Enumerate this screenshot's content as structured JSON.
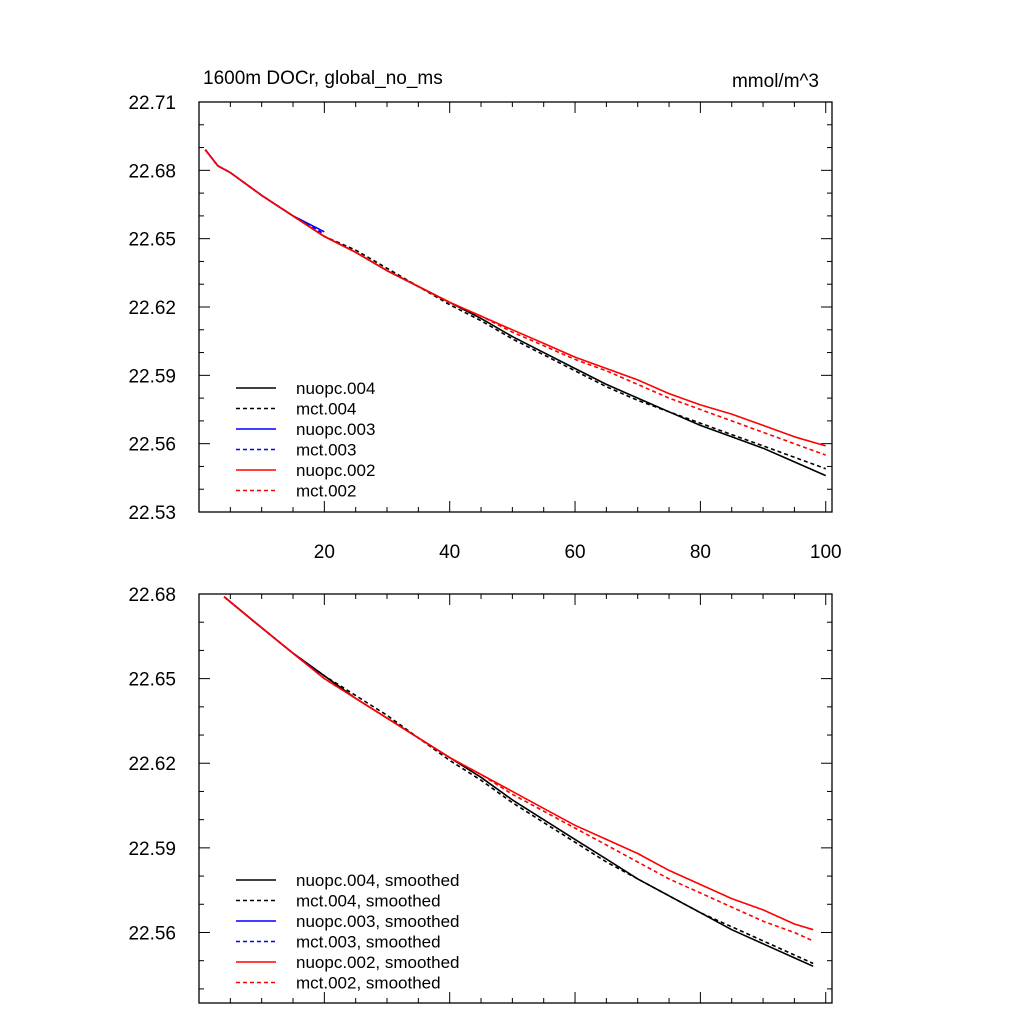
{
  "chart_data": [
    {
      "type": "line",
      "title": "1600m DOCr, global_no_ms",
      "units": "mmol/m^3",
      "xlim": [
        0,
        101
      ],
      "ylim": [
        22.53,
        22.71
      ],
      "xticks": [
        20,
        40,
        60,
        80,
        100
      ],
      "xtick_labels": [
        "20",
        "40",
        "60",
        "80",
        "100"
      ],
      "yticks": [
        22.53,
        22.56,
        22.59,
        22.62,
        22.65,
        22.68,
        22.71
      ],
      "ytick_labels": [
        "22.53",
        "22.56",
        "22.59",
        "22.62",
        "22.65",
        "22.68",
        "22.71"
      ],
      "legend_position": "bottom-left",
      "series": [
        {
          "name": "nuopc.004",
          "color": "#000000",
          "dash": "solid",
          "x": [
            1,
            3,
            5,
            10,
            15,
            20,
            25,
            30,
            35,
            40,
            45,
            50,
            55,
            60,
            65,
            70,
            75,
            80,
            85,
            90,
            95,
            100
          ],
          "y": [
            22.689,
            22.682,
            22.679,
            22.669,
            22.66,
            22.651,
            22.644,
            22.636,
            22.629,
            22.622,
            22.615,
            22.607,
            22.6,
            22.593,
            22.586,
            22.58,
            22.574,
            22.568,
            22.563,
            22.558,
            22.552,
            22.546
          ]
        },
        {
          "name": "mct.004",
          "color": "#000000",
          "dash": "dashed",
          "x": [
            1,
            3,
            5,
            10,
            15,
            20,
            25,
            30,
            35,
            40,
            45,
            50,
            55,
            60,
            65,
            70,
            75,
            80,
            85,
            90,
            95,
            100
          ],
          "y": [
            22.689,
            22.682,
            22.679,
            22.669,
            22.66,
            22.651,
            22.645,
            22.637,
            22.629,
            22.621,
            22.614,
            22.606,
            22.599,
            22.592,
            22.585,
            22.579,
            22.574,
            22.569,
            22.564,
            22.559,
            22.554,
            22.549
          ]
        },
        {
          "name": "nuopc.003",
          "color": "#0000ff",
          "dash": "solid",
          "x": [
            1,
            3,
            5,
            10,
            15,
            20
          ],
          "y": [
            22.689,
            22.682,
            22.679,
            22.669,
            22.66,
            22.653
          ]
        },
        {
          "name": "mct.003",
          "color": "#0000ff",
          "dash": "dashed",
          "x": [
            1,
            3,
            5,
            10,
            15,
            20
          ],
          "y": [
            22.689,
            22.682,
            22.679,
            22.669,
            22.66,
            22.652
          ]
        },
        {
          "name": "nuopc.002",
          "color": "#ff0000",
          "dash": "solid",
          "x": [
            1,
            3,
            5,
            10,
            15,
            20,
            25,
            30,
            35,
            40,
            45,
            50,
            55,
            60,
            65,
            70,
            75,
            80,
            85,
            90,
            95,
            100
          ],
          "y": [
            22.689,
            22.682,
            22.679,
            22.669,
            22.66,
            22.651,
            22.644,
            22.636,
            22.629,
            22.622,
            22.616,
            22.61,
            22.604,
            22.598,
            22.593,
            22.588,
            22.582,
            22.577,
            22.573,
            22.568,
            22.563,
            22.559
          ]
        },
        {
          "name": "mct.002",
          "color": "#ff0000",
          "dash": "dashed",
          "x": [
            1,
            3,
            5,
            10,
            15,
            20,
            25,
            30,
            35,
            40,
            45,
            50,
            55,
            60,
            65,
            70,
            75,
            80,
            85,
            90,
            95,
            100
          ],
          "y": [
            22.689,
            22.682,
            22.679,
            22.669,
            22.66,
            22.651,
            22.644,
            22.636,
            22.629,
            22.622,
            22.616,
            22.609,
            22.603,
            22.597,
            22.592,
            22.586,
            22.58,
            22.575,
            22.57,
            22.565,
            22.56,
            22.555
          ]
        }
      ]
    },
    {
      "type": "line",
      "title": "",
      "xlim": [
        0,
        101
      ],
      "ylim": [
        22.535,
        22.68
      ],
      "xticks": [
        20,
        40,
        60,
        80,
        100
      ],
      "xtick_labels": [],
      "yticks": [
        22.56,
        22.59,
        22.62,
        22.65,
        22.68
      ],
      "ytick_labels": [
        "22.56",
        "22.59",
        "22.62",
        "22.65",
        "22.68"
      ],
      "legend_position": "bottom-left",
      "series": [
        {
          "name": "nuopc.004, smoothed",
          "color": "#000000",
          "dash": "solid",
          "x": [
            4,
            10,
            15,
            20,
            25,
            30,
            35,
            40,
            45,
            50,
            55,
            60,
            65,
            70,
            75,
            80,
            85,
            90,
            95,
            98
          ],
          "y": [
            22.679,
            22.668,
            22.659,
            22.651,
            22.643,
            22.636,
            22.629,
            22.622,
            22.615,
            22.607,
            22.6,
            22.593,
            22.586,
            22.579,
            22.573,
            22.567,
            22.561,
            22.556,
            22.551,
            22.548
          ]
        },
        {
          "name": "mct.004, smoothed",
          "color": "#000000",
          "dash": "dashed",
          "x": [
            4,
            10,
            15,
            20,
            25,
            30,
            35,
            40,
            45,
            50,
            55,
            60,
            65,
            70,
            75,
            80,
            85,
            90,
            95,
            98
          ],
          "y": [
            22.679,
            22.668,
            22.659,
            22.651,
            22.644,
            22.637,
            22.629,
            22.621,
            22.614,
            22.606,
            22.599,
            22.592,
            22.585,
            22.579,
            22.573,
            22.567,
            22.562,
            22.557,
            22.552,
            22.549
          ]
        },
        {
          "name": "nuopc.003, smoothed",
          "color": "#0000ff",
          "dash": "solid",
          "x": [
            4,
            10,
            15,
            19
          ],
          "y": [
            22.679,
            22.668,
            22.659,
            22.652
          ]
        },
        {
          "name": "mct.003, smoothed",
          "color": "#0000ff",
          "dash": "dashed",
          "x": [
            4,
            10,
            15,
            19
          ],
          "y": [
            22.679,
            22.668,
            22.659,
            22.652
          ]
        },
        {
          "name": "nuopc.002, smoothed",
          "color": "#ff0000",
          "dash": "solid",
          "x": [
            4,
            10,
            15,
            20,
            25,
            30,
            35,
            40,
            45,
            50,
            55,
            60,
            65,
            70,
            75,
            80,
            85,
            90,
            95,
            98
          ],
          "y": [
            22.679,
            22.668,
            22.659,
            22.65,
            22.643,
            22.636,
            22.629,
            22.622,
            22.616,
            22.61,
            22.604,
            22.598,
            22.593,
            22.588,
            22.582,
            22.577,
            22.572,
            22.568,
            22.563,
            22.561
          ]
        },
        {
          "name": "mct.002, smoothed",
          "color": "#ff0000",
          "dash": "dashed",
          "x": [
            4,
            10,
            15,
            20,
            25,
            30,
            35,
            40,
            45,
            50,
            55,
            60,
            65,
            70,
            75,
            80,
            85,
            90,
            95,
            98
          ],
          "y": [
            22.679,
            22.668,
            22.659,
            22.65,
            22.643,
            22.636,
            22.629,
            22.622,
            22.616,
            22.609,
            22.603,
            22.597,
            22.591,
            22.585,
            22.579,
            22.574,
            22.569,
            22.564,
            22.56,
            22.557
          ]
        }
      ]
    }
  ]
}
